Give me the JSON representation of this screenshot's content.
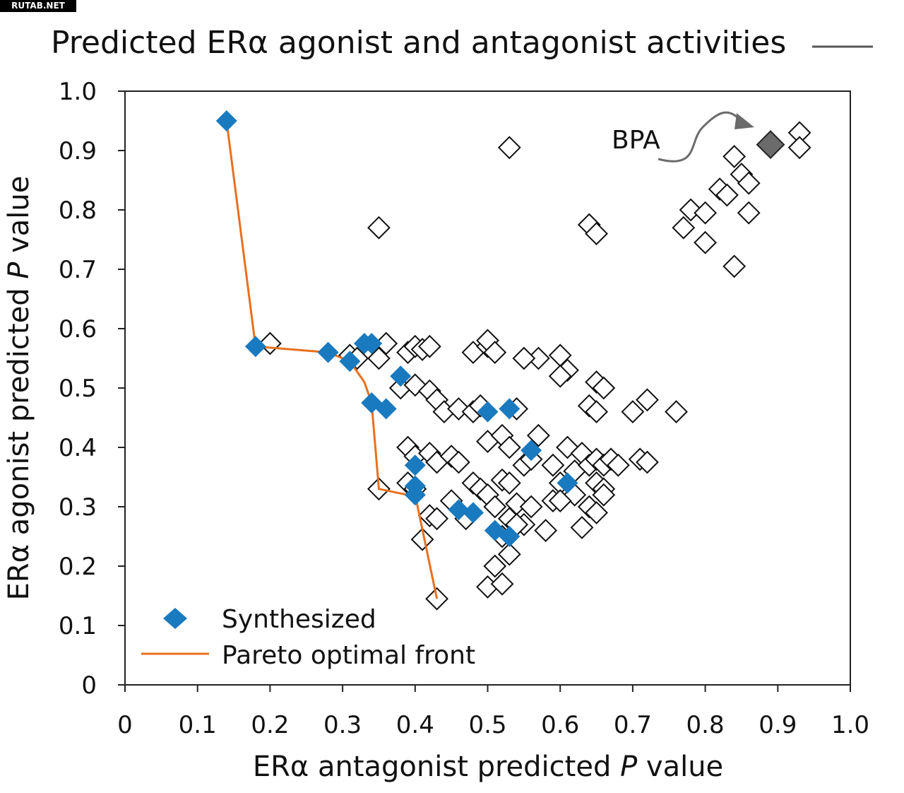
{
  "badge": "RUTAB.NET",
  "chart_data": {
    "type": "scatter",
    "title": "Predicted ERα agonist and antagonist activities",
    "xlabel_prefix": "ERα antagonist predicted ",
    "xlabel_italic": "P",
    "xlabel_suffix": " value",
    "ylabel_prefix": "ERα agonist predicted ",
    "ylabel_italic": "P",
    "ylabel_suffix": " value",
    "xlim": [
      0,
      1.0
    ],
    "ylim": [
      0,
      1.0
    ],
    "xticks": [
      "0",
      "0.1",
      "0.2",
      "0.3",
      "0.4",
      "0.5",
      "0.6",
      "0.7",
      "0.8",
      "0.9",
      "1.0"
    ],
    "yticks": [
      "0",
      "0.1",
      "0.2",
      "0.3",
      "0.4",
      "0.5",
      "0.6",
      "0.7",
      "0.8",
      "0.9",
      "1.0"
    ],
    "colors": {
      "synthesized": "#1a7abf",
      "pareto": "#e8701e",
      "bpa": "#6b6b6b",
      "other_stroke": "#111111"
    },
    "legend": {
      "synthesized": "Synthesized",
      "pareto": "Pareto optimal front",
      "position": "bottom-left"
    },
    "annotation": {
      "label": "BPA",
      "x": 0.89,
      "y": 0.91
    },
    "series": [
      {
        "name": "Other compounds",
        "points": [
          [
            0.2,
            0.575
          ],
          [
            0.31,
            0.555
          ],
          [
            0.32,
            0.55
          ],
          [
            0.35,
            0.55
          ],
          [
            0.36,
            0.575
          ],
          [
            0.39,
            0.56
          ],
          [
            0.4,
            0.57
          ],
          [
            0.41,
            0.565
          ],
          [
            0.42,
            0.57
          ],
          [
            0.48,
            0.56
          ],
          [
            0.5,
            0.57
          ],
          [
            0.5,
            0.58
          ],
          [
            0.51,
            0.56
          ],
          [
            0.57,
            0.55
          ],
          [
            0.55,
            0.55
          ],
          [
            0.6,
            0.555
          ],
          [
            0.61,
            0.53
          ],
          [
            0.6,
            0.52
          ],
          [
            0.38,
            0.5
          ],
          [
            0.4,
            0.505
          ],
          [
            0.42,
            0.495
          ],
          [
            0.43,
            0.48
          ],
          [
            0.44,
            0.46
          ],
          [
            0.46,
            0.465
          ],
          [
            0.48,
            0.46
          ],
          [
            0.49,
            0.47
          ],
          [
            0.54,
            0.465
          ],
          [
            0.65,
            0.51
          ],
          [
            0.66,
            0.5
          ],
          [
            0.64,
            0.47
          ],
          [
            0.65,
            0.46
          ],
          [
            0.7,
            0.46
          ],
          [
            0.72,
            0.48
          ],
          [
            0.76,
            0.46
          ],
          [
            0.39,
            0.4
          ],
          [
            0.4,
            0.385
          ],
          [
            0.42,
            0.39
          ],
          [
            0.43,
            0.375
          ],
          [
            0.45,
            0.385
          ],
          [
            0.46,
            0.375
          ],
          [
            0.5,
            0.41
          ],
          [
            0.52,
            0.42
          ],
          [
            0.53,
            0.4
          ],
          [
            0.55,
            0.37
          ],
          [
            0.56,
            0.38
          ],
          [
            0.57,
            0.42
          ],
          [
            0.59,
            0.37
          ],
          [
            0.61,
            0.4
          ],
          [
            0.62,
            0.36
          ],
          [
            0.63,
            0.39
          ],
          [
            0.64,
            0.37
          ],
          [
            0.65,
            0.38
          ],
          [
            0.66,
            0.37
          ],
          [
            0.67,
            0.38
          ],
          [
            0.68,
            0.37
          ],
          [
            0.71,
            0.38
          ],
          [
            0.72,
            0.375
          ],
          [
            0.6,
            0.34
          ],
          [
            0.62,
            0.32
          ],
          [
            0.65,
            0.34
          ],
          [
            0.66,
            0.33
          ],
          [
            0.66,
            0.32
          ],
          [
            0.64,
            0.3
          ],
          [
            0.65,
            0.29
          ],
          [
            0.35,
            0.33
          ],
          [
            0.39,
            0.34
          ],
          [
            0.4,
            0.33
          ],
          [
            0.42,
            0.285
          ],
          [
            0.43,
            0.28
          ],
          [
            0.45,
            0.31
          ],
          [
            0.47,
            0.28
          ],
          [
            0.48,
            0.34
          ],
          [
            0.49,
            0.33
          ],
          [
            0.5,
            0.32
          ],
          [
            0.51,
            0.3
          ],
          [
            0.52,
            0.345
          ],
          [
            0.53,
            0.34
          ],
          [
            0.54,
            0.305
          ],
          [
            0.55,
            0.27
          ],
          [
            0.56,
            0.3
          ],
          [
            0.53,
            0.28
          ],
          [
            0.54,
            0.27
          ],
          [
            0.52,
            0.25
          ],
          [
            0.53,
            0.22
          ],
          [
            0.51,
            0.2
          ],
          [
            0.5,
            0.165
          ],
          [
            0.52,
            0.17
          ],
          [
            0.58,
            0.26
          ],
          [
            0.59,
            0.31
          ],
          [
            0.6,
            0.31
          ],
          [
            0.63,
            0.265
          ],
          [
            0.41,
            0.245
          ],
          [
            0.43,
            0.145
          ],
          [
            0.53,
            0.905
          ],
          [
            0.35,
            0.77
          ],
          [
            0.64,
            0.775
          ],
          [
            0.65,
            0.76
          ],
          [
            0.77,
            0.77
          ],
          [
            0.78,
            0.8
          ],
          [
            0.8,
            0.795
          ],
          [
            0.8,
            0.745
          ],
          [
            0.82,
            0.835
          ],
          [
            0.83,
            0.825
          ],
          [
            0.84,
            0.89
          ],
          [
            0.85,
            0.86
          ],
          [
            0.86,
            0.845
          ],
          [
            0.86,
            0.795
          ],
          [
            0.84,
            0.705
          ],
          [
            0.93,
            0.93
          ],
          [
            0.93,
            0.905
          ]
        ]
      },
      {
        "name": "Synthesized",
        "points": [
          [
            0.14,
            0.95
          ],
          [
            0.18,
            0.57
          ],
          [
            0.28,
            0.56
          ],
          [
            0.31,
            0.545
          ],
          [
            0.33,
            0.575
          ],
          [
            0.34,
            0.575
          ],
          [
            0.38,
            0.52
          ],
          [
            0.34,
            0.475
          ],
          [
            0.36,
            0.465
          ],
          [
            0.5,
            0.46
          ],
          [
            0.53,
            0.465
          ],
          [
            0.56,
            0.395
          ],
          [
            0.4,
            0.37
          ],
          [
            0.4,
            0.335
          ],
          [
            0.4,
            0.32
          ],
          [
            0.46,
            0.295
          ],
          [
            0.48,
            0.29
          ],
          [
            0.51,
            0.26
          ],
          [
            0.53,
            0.25
          ],
          [
            0.61,
            0.34
          ]
        ]
      },
      {
        "name": "BPA",
        "points": [
          [
            0.89,
            0.91
          ]
        ]
      },
      {
        "name": "Pareto optimal front",
        "line": [
          [
            0.14,
            0.95
          ],
          [
            0.18,
            0.57
          ],
          [
            0.28,
            0.56
          ],
          [
            0.31,
            0.545
          ],
          [
            0.33,
            0.51
          ],
          [
            0.34,
            0.475
          ],
          [
            0.35,
            0.33
          ],
          [
            0.39,
            0.32
          ],
          [
            0.4,
            0.32
          ],
          [
            0.43,
            0.145
          ]
        ]
      }
    ]
  }
}
